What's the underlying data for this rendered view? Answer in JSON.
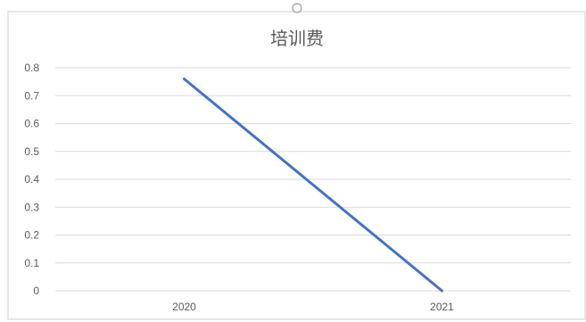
{
  "chart_data": {
    "type": "line",
    "title": "培训费",
    "xlabel": "",
    "ylabel": "",
    "categories": [
      "2020",
      "2021"
    ],
    "series": [
      {
        "values": [
          0.76,
          0.0
        ],
        "color": "#4472c4"
      }
    ],
    "ylim": [
      0,
      0.8
    ],
    "yticks": [
      "0",
      "0.1",
      "0.2",
      "0.3",
      "0.4",
      "0.5",
      "0.6",
      "0.7",
      "0.8"
    ],
    "grid": true,
    "legend": "none"
  },
  "colors": {
    "series_line": "#4472c4",
    "gridline": "#d9d9d9",
    "text": "#595959"
  }
}
